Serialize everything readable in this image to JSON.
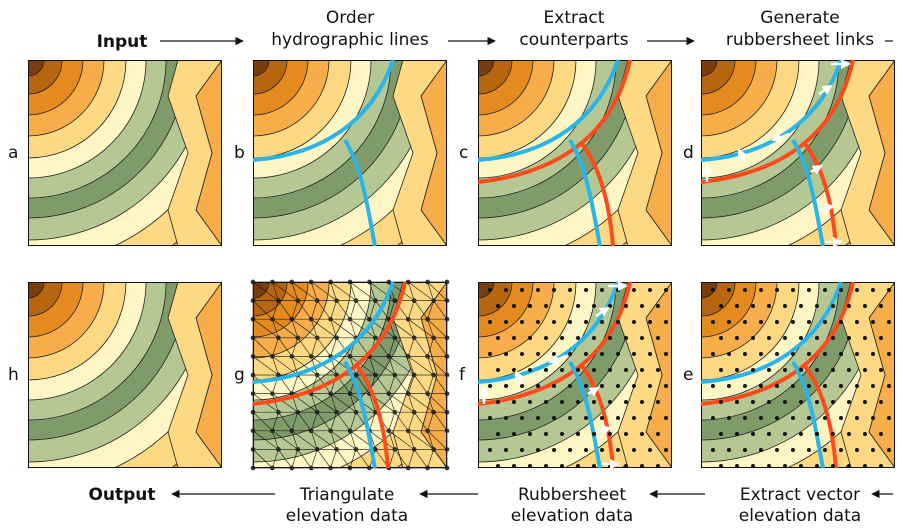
{
  "top_labels": [
    [
      "Input"
    ],
    [
      "Order",
      "hydrographic lines"
    ],
    [
      "Extract",
      "counterparts"
    ],
    [
      "Generate",
      "rubbersheet links"
    ]
  ],
  "bottom_labels": [
    [
      "Output"
    ],
    [
      "Triangulate",
      "elevation data"
    ],
    [
      "Rubbersheet",
      "elevation data"
    ],
    [
      "Extract vector",
      "elevation data"
    ]
  ],
  "panel_letters": [
    "a",
    "b",
    "c",
    "d",
    "h",
    "g",
    "f",
    "e"
  ]
}
